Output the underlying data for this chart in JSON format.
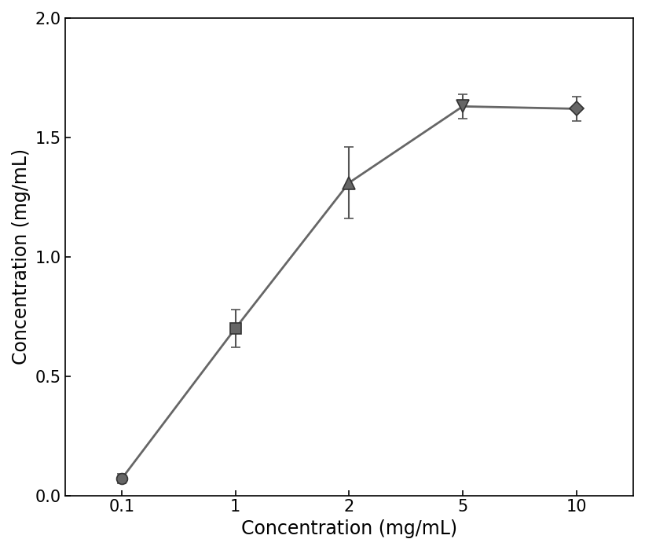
{
  "x_positions": [
    1,
    2,
    3,
    4,
    5
  ],
  "x_labels": [
    "0.1",
    "1",
    "2",
    "5",
    "10"
  ],
  "y": [
    0.07,
    0.7,
    1.31,
    1.63,
    1.62
  ],
  "yerr": [
    0.02,
    0.08,
    0.15,
    0.05,
    0.05
  ],
  "markers": [
    "o",
    "s",
    "^",
    "v",
    "D"
  ],
  "marker_sizes": [
    10,
    10,
    11,
    11,
    9
  ],
  "line_color": "#666666",
  "marker_color": "#666666",
  "marker_edge_color": "#333333",
  "ecolor": "#555555",
  "xlabel": "Concentration (mg/mL)",
  "ylabel": "Concentration (mg/mL)",
  "ylim": [
    0,
    2.0
  ],
  "yticks": [
    0.0,
    0.5,
    1.0,
    1.5,
    2.0
  ],
  "label_fontsize": 17,
  "tick_fontsize": 15,
  "background_color": "#ffffff",
  "capsize": 4,
  "linewidth": 2.0
}
